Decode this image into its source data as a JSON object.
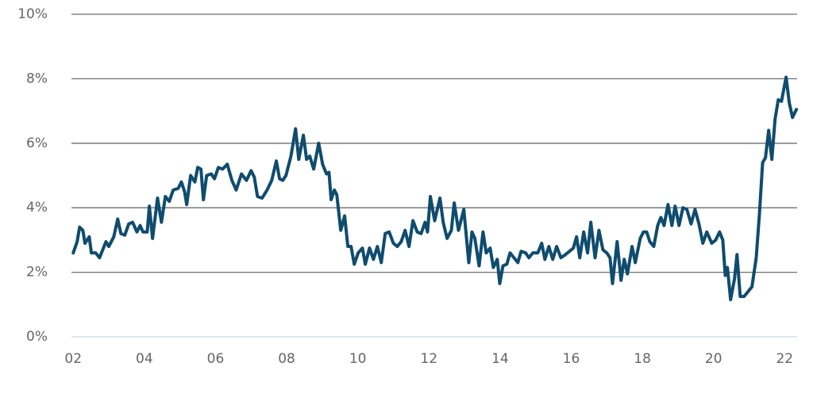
{
  "chart_data": {
    "type": "line",
    "x": [
      2002.0,
      2002.11,
      2002.18,
      2002.27,
      2002.33,
      2002.45,
      2002.51,
      2002.63,
      2002.74,
      2002.92,
      2003.0,
      2003.14,
      2003.25,
      2003.34,
      2003.45,
      2003.56,
      2003.67,
      2003.79,
      2003.88,
      2003.96,
      2004.08,
      2004.14,
      2004.23,
      2004.37,
      2004.48,
      2004.59,
      2004.7,
      2004.81,
      2004.95,
      2005.04,
      2005.13,
      2005.19,
      2005.3,
      2005.42,
      2005.5,
      2005.59,
      2005.66,
      2005.75,
      2005.88,
      2005.97,
      2006.08,
      2006.2,
      2006.33,
      2006.46,
      2006.58,
      2006.73,
      2006.87,
      2007.0,
      2007.09,
      2007.18,
      2007.31,
      2007.45,
      2007.58,
      2007.71,
      2007.8,
      2007.89,
      2007.98,
      2008.12,
      2008.25,
      2008.34,
      2008.47,
      2008.56,
      2008.65,
      2008.76,
      2008.9,
      2009.01,
      2009.12,
      2009.19,
      2009.25,
      2009.34,
      2009.41,
      2009.52,
      2009.63,
      2009.72,
      2009.81,
      2009.9,
      2010.01,
      2010.13,
      2010.21,
      2010.33,
      2010.44,
      2010.55,
      2010.66,
      2010.77,
      2010.88,
      2011.0,
      2011.11,
      2011.22,
      2011.33,
      2011.44,
      2011.55,
      2011.67,
      2011.78,
      2011.89,
      2011.96,
      2012.04,
      2012.16,
      2012.31,
      2012.4,
      2012.51,
      2012.63,
      2012.71,
      2012.83,
      2012.98,
      2013.12,
      2013.21,
      2013.29,
      2013.41,
      2013.52,
      2013.61,
      2013.72,
      2013.81,
      2013.92,
      2013.99,
      2014.08,
      2014.19,
      2014.28,
      2014.39,
      2014.5,
      2014.59,
      2014.72,
      2014.81,
      2014.92,
      2015.06,
      2015.17,
      2015.26,
      2015.37,
      2015.48,
      2015.59,
      2015.71,
      2015.84,
      2015.95,
      2016.06,
      2016.15,
      2016.24,
      2016.35,
      2016.46,
      2016.55,
      2016.67,
      2016.78,
      2016.89,
      2017.0,
      2017.09,
      2017.16,
      2017.29,
      2017.4,
      2017.49,
      2017.58,
      2017.71,
      2017.8,
      2017.94,
      2018.03,
      2018.12,
      2018.21,
      2018.32,
      2018.43,
      2018.52,
      2018.61,
      2018.72,
      2018.83,
      2018.92,
      2019.03,
      2019.14,
      2019.25,
      2019.37,
      2019.48,
      2019.59,
      2019.7,
      2019.81,
      2019.95,
      2020.06,
      2020.17,
      2020.26,
      2020.33,
      2020.39,
      2020.48,
      2020.59,
      2020.66,
      2020.75,
      2020.86,
      2020.97,
      2021.08,
      2021.2,
      2021.29,
      2021.38,
      2021.46,
      2021.55,
      2021.64,
      2021.73,
      2021.82,
      2021.91,
      2022.04,
      2022.13,
      2022.22,
      2022.33
    ],
    "series": [
      {
        "color": "#0f4c6e",
        "values": [
          2.6,
          2.95,
          3.4,
          3.3,
          2.9,
          3.1,
          2.6,
          2.6,
          2.45,
          2.95,
          2.8,
          3.1,
          3.65,
          3.2,
          3.15,
          3.5,
          3.55,
          3.25,
          3.45,
          3.25,
          3.25,
          4.05,
          3.05,
          4.3,
          3.55,
          4.35,
          4.2,
          4.55,
          4.6,
          4.8,
          4.5,
          4.1,
          5.0,
          4.8,
          5.25,
          5.2,
          4.25,
          5.0,
          5.05,
          4.9,
          5.25,
          5.2,
          5.35,
          4.85,
          4.55,
          5.05,
          4.85,
          5.15,
          4.95,
          4.35,
          4.3,
          4.55,
          4.85,
          5.45,
          4.9,
          4.85,
          5.0,
          5.6,
          6.45,
          5.5,
          6.25,
          5.5,
          5.6,
          5.2,
          6.0,
          5.35,
          5.05,
          5.1,
          4.25,
          4.55,
          4.4,
          3.3,
          3.75,
          2.8,
          2.8,
          2.25,
          2.6,
          2.75,
          2.25,
          2.75,
          2.4,
          2.8,
          2.3,
          3.2,
          3.25,
          2.9,
          2.8,
          2.95,
          3.3,
          2.8,
          3.6,
          3.25,
          3.2,
          3.55,
          3.25,
          4.35,
          3.6,
          4.3,
          3.55,
          3.05,
          3.3,
          4.15,
          3.3,
          3.95,
          2.3,
          3.25,
          3.05,
          2.2,
          3.25,
          2.6,
          2.75,
          2.15,
          2.4,
          1.65,
          2.2,
          2.25,
          2.6,
          2.45,
          2.3,
          2.65,
          2.6,
          2.45,
          2.6,
          2.6,
          2.9,
          2.4,
          2.8,
          2.4,
          2.8,
          2.45,
          2.55,
          2.65,
          2.75,
          3.1,
          2.45,
          3.25,
          2.6,
          3.55,
          2.45,
          3.3,
          2.7,
          2.6,
          2.45,
          1.65,
          2.95,
          1.75,
          2.4,
          1.95,
          2.8,
          2.3,
          3.05,
          3.25,
          3.25,
          2.95,
          2.8,
          3.45,
          3.7,
          3.45,
          4.1,
          3.45,
          4.05,
          3.45,
          4.0,
          3.95,
          3.5,
          3.95,
          3.5,
          2.9,
          3.25,
          2.9,
          3.0,
          3.25,
          3.0,
          1.9,
          2.15,
          1.15,
          1.8,
          2.55,
          1.25,
          1.25,
          1.4,
          1.55,
          2.45,
          3.8,
          5.4,
          5.55,
          6.4,
          5.5,
          6.75,
          7.35,
          7.3,
          8.05,
          7.25,
          6.8,
          7.05
        ]
      }
    ],
    "xlim": [
      2001.95,
      2022.35
    ],
    "xticks": [
      {
        "value": 2002,
        "label": "02"
      },
      {
        "value": 2004,
        "label": "04"
      },
      {
        "value": 2006,
        "label": "06"
      },
      {
        "value": 2008,
        "label": "08"
      },
      {
        "value": 2010,
        "label": "10"
      },
      {
        "value": 2012,
        "label": "12"
      },
      {
        "value": 2014,
        "label": "14"
      },
      {
        "value": 2016,
        "label": "16"
      },
      {
        "value": 2018,
        "label": "18"
      },
      {
        "value": 2020,
        "label": "20"
      },
      {
        "value": 2022,
        "label": "22"
      }
    ],
    "ylim": [
      0,
      10
    ],
    "yticks": [
      {
        "value": 0,
        "label": "0%"
      },
      {
        "value": 2,
        "label": "2%"
      },
      {
        "value": 4,
        "label": "4%"
      },
      {
        "value": 6,
        "label": "6%"
      },
      {
        "value": 8,
        "label": "8%"
      },
      {
        "value": 10,
        "label": "10%"
      }
    ],
    "grid": true
  }
}
